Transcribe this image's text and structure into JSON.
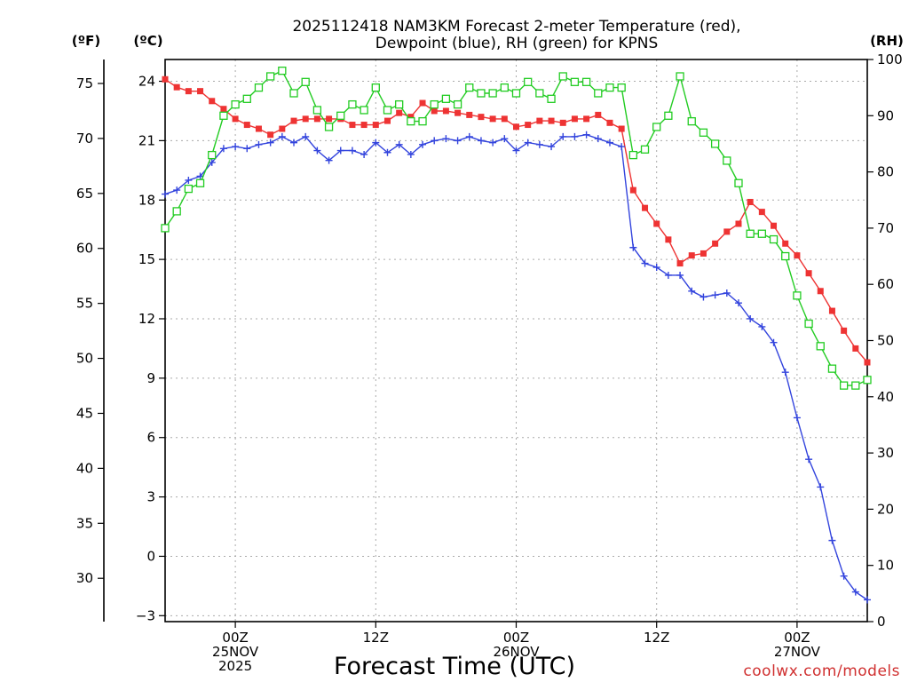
{
  "chart_data": {
    "type": "line",
    "title": "2025112418 NAM3KM Forecast 2-meter Temperature (red),",
    "subtitle": "Dewpoint (blue), RH (green) for KPNS",
    "xlabel": "Forecast Time (UTC)",
    "credit": "coolwx.com/models",
    "units": {
      "left_outer": "(ºF)",
      "left_inner": "(ºC)",
      "right": "(RH)"
    },
    "x_hours_range": [
      -6,
      54
    ],
    "celsius_axis": {
      "ylim": [
        -3.3,
        25.1
      ],
      "ticks": [
        -3,
        0,
        3,
        6,
        9,
        12,
        15,
        18,
        21,
        24
      ]
    },
    "fahrenheit_axis": {
      "ticks": [
        30,
        35,
        40,
        45,
        50,
        55,
        60,
        65,
        70,
        75
      ]
    },
    "rh_axis": {
      "ylim": [
        0,
        100
      ],
      "ticks": [
        0,
        10,
        20,
        30,
        40,
        50,
        60,
        70,
        80,
        90,
        100
      ]
    },
    "x_ticks": [
      {
        "hour": 0,
        "lines": [
          "00Z",
          "25NOV",
          "2025"
        ]
      },
      {
        "hour": 12,
        "lines": [
          "12Z"
        ]
      },
      {
        "hour": 24,
        "lines": [
          "00Z",
          "26NOV"
        ]
      },
      {
        "hour": 36,
        "lines": [
          "12Z"
        ]
      },
      {
        "hour": 48,
        "lines": [
          "00Z",
          "27NOV"
        ]
      }
    ],
    "series": [
      {
        "name": "Temperature",
        "axis": "celsius",
        "color": "#ee3333",
        "marker": "filled-square",
        "hours": [
          -6,
          -5,
          -4,
          -3,
          -2,
          -1,
          0,
          1,
          2,
          3,
          4,
          5,
          6,
          7,
          8,
          9,
          10,
          11,
          12,
          13,
          14,
          15,
          16,
          17,
          18,
          19,
          20,
          21,
          22,
          23,
          24,
          25,
          26,
          27,
          28,
          29,
          30,
          31,
          32,
          33,
          34,
          35,
          36,
          37,
          38,
          39,
          40,
          41,
          42,
          43,
          44,
          45,
          46,
          47,
          48,
          49,
          50,
          51,
          52,
          53,
          54
        ],
        "values": [
          24.1,
          23.7,
          23.5,
          23.5,
          23.0,
          22.6,
          22.1,
          21.8,
          21.6,
          21.3,
          21.6,
          22.0,
          22.1,
          22.1,
          22.1,
          22.1,
          21.8,
          21.8,
          21.8,
          22.0,
          22.4,
          22.2,
          22.9,
          22.5,
          22.5,
          22.4,
          22.3,
          22.2,
          22.1,
          22.1,
          21.7,
          21.8,
          22.0,
          22.0,
          21.9,
          22.1,
          22.1,
          22.3,
          21.9,
          21.6,
          18.5,
          17.6,
          16.8,
          16.0,
          14.8,
          15.2,
          15.3,
          15.8,
          16.4,
          16.8,
          17.9,
          17.4,
          16.7,
          15.8,
          15.2,
          14.3,
          13.4,
          12.4,
          11.4,
          10.5,
          9.8
        ],
        "labels": []
      },
      {
        "name": "Dewpoint",
        "axis": "celsius",
        "color": "#3344dd",
        "marker": "plus",
        "hours": [
          -6,
          -5,
          -4,
          -3,
          -2,
          -1,
          0,
          1,
          2,
          3,
          4,
          5,
          6,
          7,
          8,
          9,
          10,
          11,
          12,
          13,
          14,
          15,
          16,
          17,
          18,
          19,
          20,
          21,
          22,
          23,
          24,
          25,
          26,
          27,
          28,
          29,
          30,
          31,
          32,
          33,
          34,
          35,
          36,
          37,
          38,
          39,
          40,
          41,
          42,
          43,
          44,
          45,
          46,
          47,
          48,
          49,
          50,
          51,
          52,
          53,
          54
        ],
        "values": [
          18.3,
          18.5,
          19.0,
          19.2,
          19.9,
          20.6,
          20.7,
          20.6,
          20.8,
          20.9,
          21.2,
          20.9,
          21.2,
          20.5,
          20.0,
          20.5,
          20.5,
          20.3,
          20.9,
          20.4,
          20.8,
          20.3,
          20.8,
          21.0,
          21.1,
          21.0,
          21.2,
          21.0,
          20.9,
          21.1,
          20.5,
          20.9,
          20.8,
          20.7,
          21.2,
          21.2,
          21.3,
          21.1,
          20.9,
          20.7,
          15.6,
          14.8,
          14.6,
          14.2,
          14.2,
          13.4,
          13.1,
          13.2,
          13.3,
          12.8,
          12.0,
          11.6,
          10.8,
          9.3,
          7.0,
          4.9,
          3.5,
          0.8,
          -1.0,
          -1.8,
          -2.2
        ],
        "labels": []
      },
      {
        "name": "RH",
        "axis": "rh",
        "color": "#22cc22",
        "marker": "open-square",
        "hours": [
          -6,
          -5,
          -4,
          -3,
          -2,
          -1,
          0,
          1,
          2,
          3,
          4,
          5,
          6,
          7,
          8,
          9,
          10,
          11,
          12,
          13,
          14,
          15,
          16,
          17,
          18,
          19,
          20,
          21,
          22,
          23,
          24,
          25,
          26,
          27,
          28,
          29,
          30,
          31,
          32,
          33,
          34,
          35,
          36,
          37,
          38,
          39,
          40,
          41,
          42,
          43,
          44,
          45,
          46,
          47,
          48,
          49,
          50,
          51,
          52,
          53,
          54
        ],
        "values": [
          70,
          73,
          77,
          78,
          83,
          90,
          92,
          93,
          95,
          97,
          98,
          94,
          96,
          91,
          88,
          90,
          92,
          91,
          95,
          91,
          92,
          89,
          89,
          92,
          93,
          92,
          95,
          94,
          94,
          95,
          94,
          96,
          94,
          93,
          97,
          96,
          96,
          94,
          95,
          95,
          83,
          84,
          88,
          90,
          97,
          89,
          87,
          85,
          82,
          78,
          69,
          69,
          68,
          65,
          58,
          53,
          49,
          45,
          42,
          42,
          43
        ],
        "labels": []
      }
    ]
  }
}
